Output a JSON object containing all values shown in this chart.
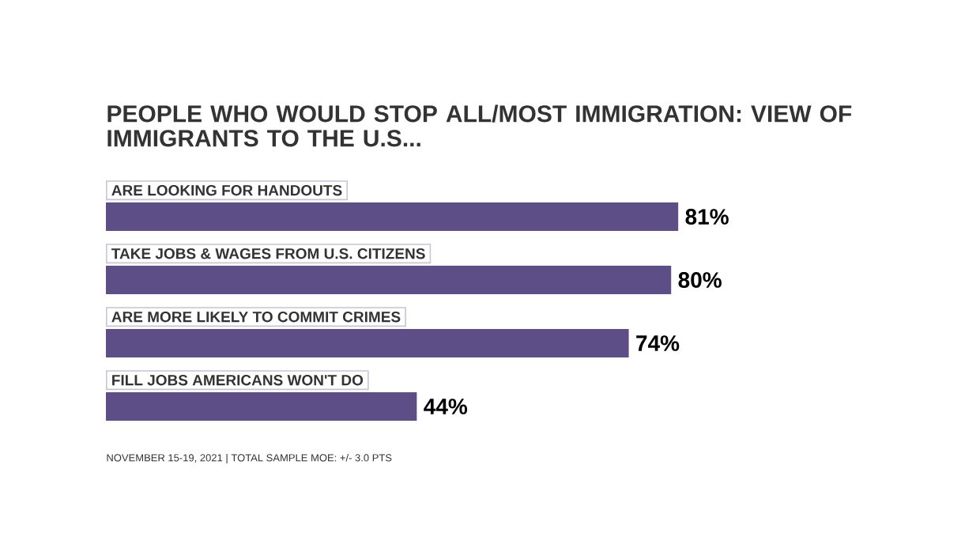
{
  "chart_data": {
    "type": "bar",
    "orientation": "horizontal",
    "title": "PEOPLE WHO WOULD STOP ALL/MOST IMMIGRATION: VIEW OF IMMIGRANTS TO THE U.S...",
    "categories": [
      "ARE LOOKING FOR HANDOUTS",
      "TAKE JOBS & WAGES FROM U.S. CITIZENS",
      "ARE MORE LIKELY TO COMMIT CRIMES",
      "FILL JOBS AMERICANS WON'T DO"
    ],
    "values": [
      81,
      80,
      74,
      44
    ],
    "value_labels": [
      "81%",
      "80%",
      "74%",
      "44%"
    ],
    "color": "#5d4e87",
    "annotations": [
      "NOVEMBER 15-19, 2021 | TOTAL SAMPLE MOE: +/- 3.0 PTS"
    ]
  }
}
